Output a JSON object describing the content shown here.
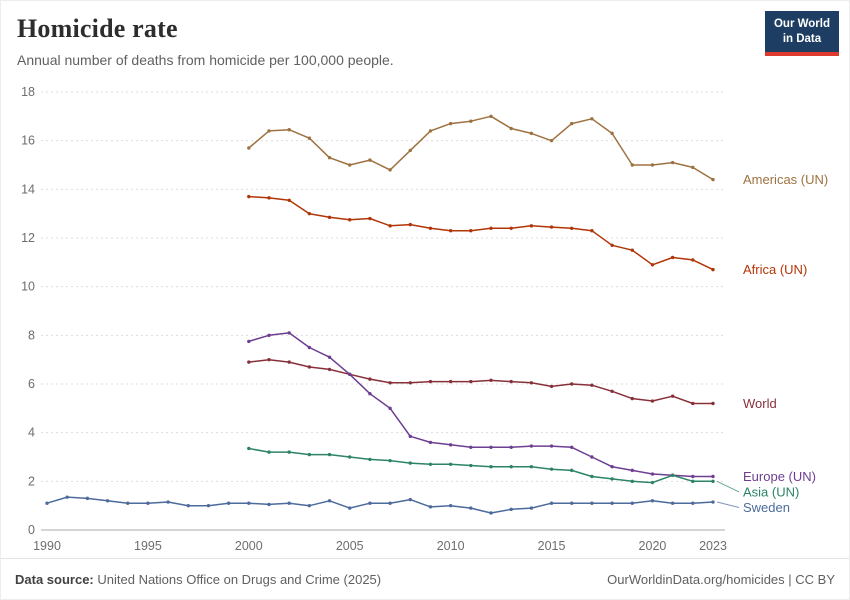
{
  "header": {
    "title": "Homicide rate",
    "subtitle": "Annual number of deaths from homicide per 100,000 people.",
    "logo": {
      "line1": "Our World",
      "line2": "in Data",
      "bg_color": "#1d3d63",
      "accent_color": "#dc3a2d"
    }
  },
  "chart_data": {
    "type": "line",
    "title": "Homicide rate",
    "xlabel": "",
    "ylabel": "",
    "x_range": [
      1990,
      2023
    ],
    "ylim": [
      0,
      18
    ],
    "y_ticks": [
      0,
      2,
      4,
      6,
      8,
      10,
      12,
      14,
      16,
      18
    ],
    "x_ticks": [
      1990,
      1995,
      2000,
      2005,
      2010,
      2015,
      2020,
      2023
    ],
    "grid": "horizontal-dashed",
    "legend_position": "right-end-labels",
    "series": [
      {
        "name": "Americas (UN)",
        "color": "#9e7240",
        "start_year": 2000,
        "values": [
          15.7,
          16.4,
          16.45,
          16.1,
          15.3,
          15.0,
          15.2,
          14.8,
          15.6,
          16.4,
          16.7,
          16.8,
          17.0,
          16.5,
          16.3,
          16.0,
          16.7,
          16.9,
          16.3,
          15.0,
          15.0,
          15.1,
          14.9,
          14.4
        ]
      },
      {
        "name": "Africa (UN)",
        "color": "#b13507",
        "start_year": 2000,
        "values": [
          13.7,
          13.65,
          13.55,
          13.0,
          12.85,
          12.75,
          12.8,
          12.5,
          12.55,
          12.4,
          12.3,
          12.3,
          12.4,
          12.4,
          12.5,
          12.45,
          12.4,
          12.3,
          11.7,
          11.5,
          10.9,
          11.2,
          11.1,
          10.7
        ]
      },
      {
        "name": "World",
        "color": "#883039",
        "start_year": 2000,
        "values": [
          6.9,
          7.0,
          6.9,
          6.7,
          6.6,
          6.4,
          6.2,
          6.05,
          6.05,
          6.1,
          6.1,
          6.1,
          6.15,
          6.1,
          6.05,
          5.9,
          6.0,
          5.95,
          5.7,
          5.4,
          5.3,
          5.5,
          5.2,
          5.2
        ]
      },
      {
        "name": "Europe (UN)",
        "color": "#6d3e91",
        "start_year": 2000,
        "values": [
          7.75,
          8.0,
          8.1,
          7.5,
          7.1,
          6.4,
          5.6,
          5.0,
          3.85,
          3.6,
          3.5,
          3.4,
          3.4,
          3.4,
          3.45,
          3.45,
          3.4,
          3.0,
          2.6,
          2.45,
          2.3,
          2.25,
          2.2,
          2.2
        ]
      },
      {
        "name": "Asia (UN)",
        "color": "#2c8465",
        "start_year": 2000,
        "values": [
          3.35,
          3.2,
          3.2,
          3.1,
          3.1,
          3.0,
          2.9,
          2.85,
          2.75,
          2.7,
          2.7,
          2.65,
          2.6,
          2.6,
          2.6,
          2.5,
          2.45,
          2.2,
          2.1,
          2.0,
          1.95,
          2.25,
          2.0,
          2.0
        ]
      },
      {
        "name": "Sweden",
        "color": "#4c6a9c",
        "start_year": 1990,
        "values": [
          1.1,
          1.35,
          1.3,
          1.2,
          1.1,
          1.1,
          1.15,
          1.0,
          1.0,
          1.1,
          1.1,
          1.05,
          1.1,
          1.0,
          1.2,
          0.9,
          1.1,
          1.1,
          1.25,
          0.95,
          1.0,
          0.9,
          0.7,
          0.85,
          0.9,
          1.1,
          1.1,
          1.1,
          1.1,
          1.1,
          1.2,
          1.1,
          1.1,
          1.15
        ]
      }
    ]
  },
  "footer": {
    "source_label": "Data source:",
    "source_text": "United Nations Office on Drugs and Crime (2025)",
    "attribution": "OurWorldinData.org/homicides | CC BY"
  }
}
